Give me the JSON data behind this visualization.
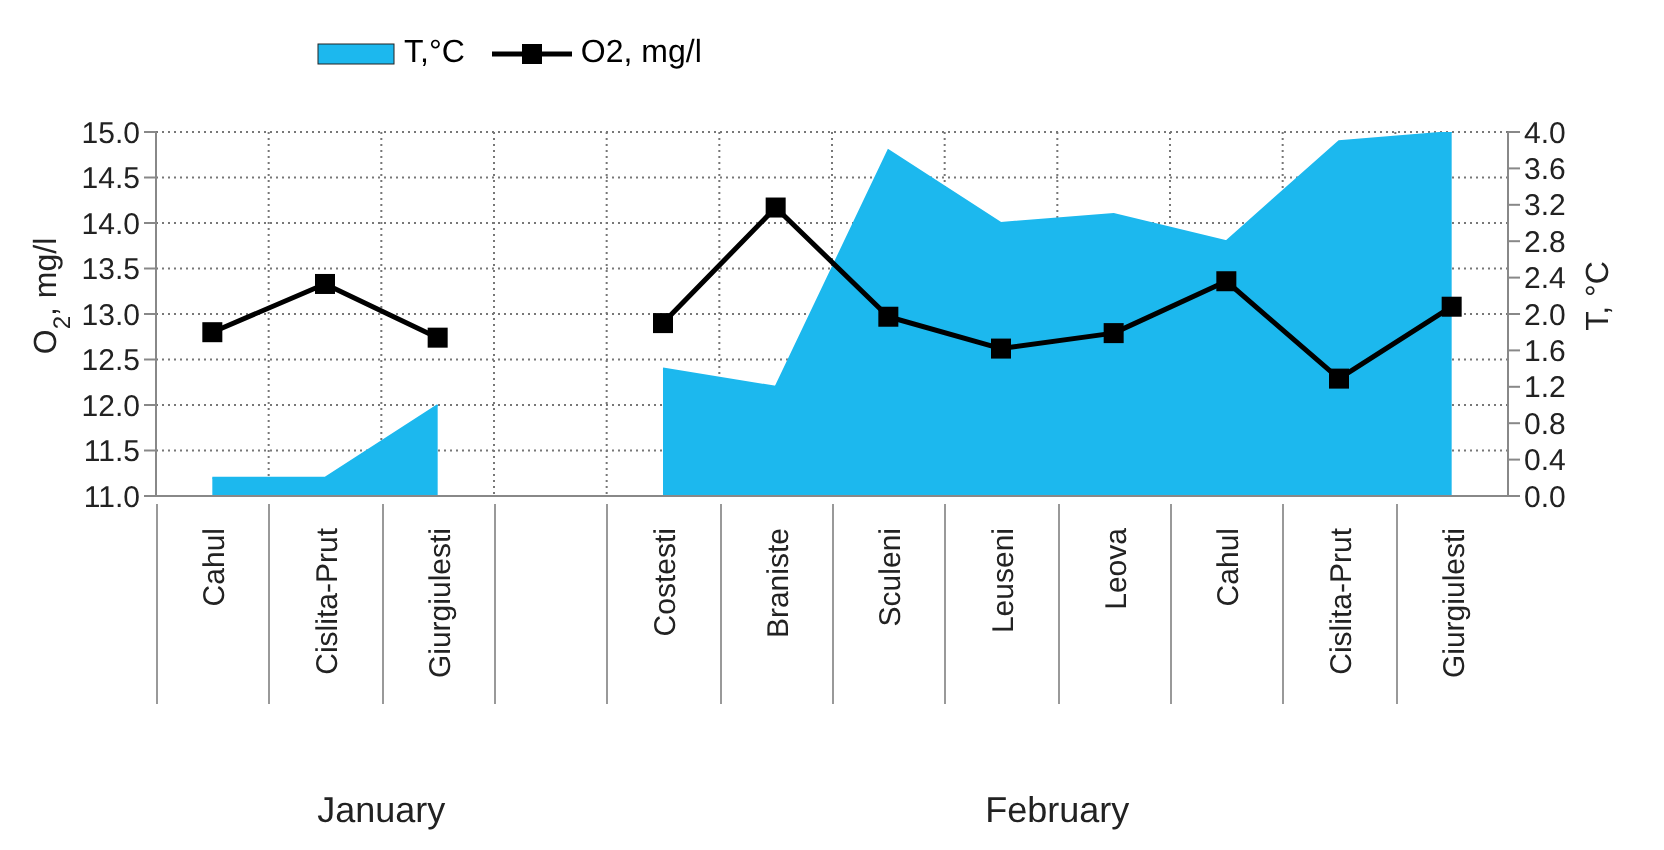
{
  "chart_data": {
    "type": "line",
    "categories": [
      "Cahul",
      "Cislita-Prut",
      "Giurgiulesti",
      null,
      "Costesti",
      "Braniste",
      "Sculeni",
      "Leuseni",
      "Leova",
      "Cahul",
      "Cislita-Prut",
      "Giurgiulesti"
    ],
    "series": [
      {
        "name": "T,°C",
        "type": "area",
        "axis": "y2",
        "color": "#1cb8ee",
        "values": [
          0.2,
          0.2,
          1.0,
          null,
          1.4,
          1.2,
          3.8,
          3.0,
          3.1,
          2.8,
          3.9,
          4.0
        ]
      },
      {
        "name": "O2, mg/l",
        "color": "#000000",
        "marker": "square",
        "values": [
          12.8,
          13.33,
          12.74,
          null,
          12.9,
          14.17,
          12.97,
          12.62,
          12.79,
          13.36,
          12.29,
          13.08
        ]
      }
    ],
    "ylabel": "O$_{2}$, mg/l",
    "y2label": "T, °C",
    "ylim": [
      11,
      15
    ],
    "yticks": [
      {
        "value": 11,
        "label": "11.0"
      },
      {
        "value": 11.5,
        "label": "11.5"
      },
      {
        "value": 12,
        "label": "12.0"
      },
      {
        "value": 12.5,
        "label": "12.5"
      },
      {
        "value": 13,
        "label": "13.0"
      },
      {
        "value": 13.5,
        "label": "13.5"
      },
      {
        "value": 14,
        "label": "14.0"
      },
      {
        "value": 14.5,
        "label": "14.5"
      },
      {
        "value": 15,
        "label": "15.0"
      }
    ],
    "y2lim": [
      0,
      4
    ],
    "y2ticks": [
      {
        "value": 0,
        "label": "0.0"
      },
      {
        "value": 0.4,
        "label": "0.4"
      },
      {
        "value": 0.8,
        "label": "0.8"
      },
      {
        "value": 1.2,
        "label": "1.2"
      },
      {
        "value": 1.6,
        "label": "1.6"
      },
      {
        "value": 2,
        "label": "2.0"
      },
      {
        "value": 2.4,
        "label": "2.4"
      },
      {
        "value": 2.8,
        "label": "2.8"
      },
      {
        "value": 3.2,
        "label": "3.2"
      },
      {
        "value": 3.6,
        "label": "3.6"
      },
      {
        "value": 4,
        "label": "4.0"
      }
    ],
    "annotations": [
      "January",
      "February"
    ],
    "grid": true,
    "legend": "top left"
  }
}
